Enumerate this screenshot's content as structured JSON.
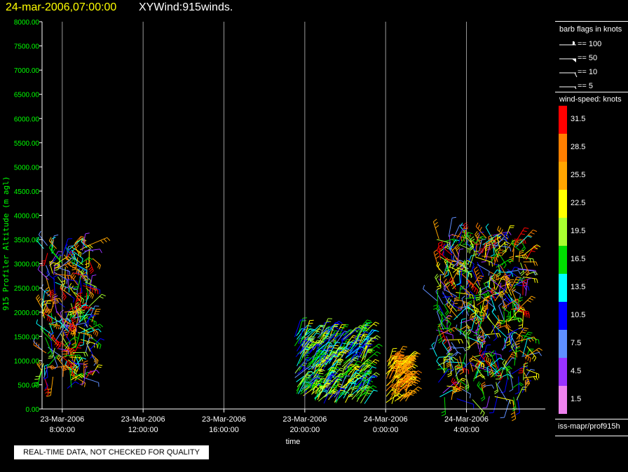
{
  "header": {
    "datetime": "24-mar-2006,07:00:00",
    "title": "XYWind:915winds."
  },
  "footer_note": "REAL-TIME DATA, NOT CHECKED FOR QUALITY",
  "legend": {
    "barb_title": "barb flags in knots",
    "barb_items": [
      "== 100",
      "== 50",
      "== 10",
      "== 5"
    ],
    "speed_title": "wind-speed: knots",
    "speed_levels": [
      "31.5",
      "28.5",
      "25.5",
      "22.5",
      "19.5",
      "16.5",
      "13.5",
      "10.5",
      "7.5",
      "4.5",
      "1.5"
    ],
    "speed_colors": [
      "#ff0000",
      "#ff7f00",
      "#ffa500",
      "#ffff00",
      "#a8ff30",
      "#00dd00",
      "#00ffff",
      "#0000ff",
      "#5f8fff",
      "#9932ff",
      "#ee82ee"
    ],
    "source": "iss-mapr/prof915h"
  },
  "chart_data": {
    "type": "scatter",
    "xlabel": "time",
    "ylabel": "915 Profiler Altitude (m agl)",
    "y_ticks": [
      "0.00",
      "500.00",
      "1000.00",
      "1500.00",
      "2000.00",
      "2500.00",
      "3000.00",
      "3500.00",
      "4000.00",
      "4500.00",
      "5000.00",
      "5500.00",
      "6000.00",
      "6500.00",
      "7000.00",
      "7500.00",
      "8000.00"
    ],
    "ylim": [
      0,
      8000
    ],
    "x_ticks": [
      {
        "date": "23-Mar-2006",
        "time": "8:00:00"
      },
      {
        "date": "23-Mar-2006",
        "time": "12:00:00"
      },
      {
        "date": "23-Mar-2006",
        "time": "16:00:00"
      },
      {
        "date": "23-Mar-2006",
        "time": "20:00:00"
      },
      {
        "date": "24-Mar-2006",
        "time": "0:00:00"
      },
      {
        "date": "24-Mar-2006",
        "time": "4:00:00"
      }
    ],
    "xlim_hours_since_first_tick": [
      -1,
      23.9
    ],
    "grid": "vertical",
    "series": [
      {
        "time_start": "23-Mar-2006 7:00",
        "time_end": "23-Mar-2006 9:30",
        "alt_min_m": 400,
        "alt_max_m": 3450,
        "speed_min_kt": 4,
        "speed_max_kt": 32
      },
      {
        "time_start": "23-Mar-2006 19:30",
        "time_end": "23-Mar-2006 23:00",
        "alt_min_m": 100,
        "alt_max_m": 1600,
        "speed_min_kt": 8,
        "speed_max_kt": 24
      },
      {
        "time_start": "24-Mar-2006 0:00",
        "time_end": "24-Mar-2006 1:00",
        "alt_min_m": 100,
        "alt_max_m": 1000,
        "speed_min_kt": 22,
        "speed_max_kt": 30
      },
      {
        "time_start": "24-Mar-2006 2:30",
        "time_end": "24-Mar-2006 7:00",
        "alt_min_m": 150,
        "alt_max_m": 3600,
        "speed_min_kt": 4,
        "speed_max_kt": 32
      }
    ]
  }
}
